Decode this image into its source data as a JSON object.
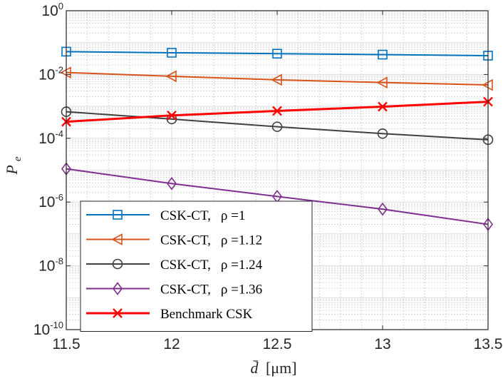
{
  "chart_data": {
    "type": "line",
    "xlabel_symbol": "d̄",
    "xlabel_unit": "[μm]",
    "ylabel_main": "P",
    "ylabel_sub": "e",
    "x": [
      11.5,
      12,
      12.5,
      13,
      13.5
    ],
    "xlim": [
      11.5,
      13.5
    ],
    "ylim": [
      1e-10,
      1
    ],
    "yscale": "log",
    "grid": true,
    "legend_position": "lower-left",
    "x_ticks": [
      "11.5",
      "12",
      "12.5",
      "13",
      "13.5"
    ],
    "y_ticks": [
      {
        "base": "10",
        "exp": "0"
      },
      {
        "base": "10",
        "exp": "-2"
      },
      {
        "base": "10",
        "exp": "-4"
      },
      {
        "base": "10",
        "exp": "-6"
      },
      {
        "base": "10",
        "exp": "-8"
      },
      {
        "base": "10",
        "exp": "-10"
      }
    ],
    "series": [
      {
        "name": "CSK-CT,",
        "rho": "ρ =1",
        "color": "#0072BD",
        "marker": "square",
        "values": [
          0.052,
          0.048,
          0.045,
          0.042,
          0.039
        ]
      },
      {
        "name": "CSK-CT,",
        "rho": "ρ =1.12",
        "color": "#D95319",
        "marker": "triangle-left",
        "values": [
          0.0115,
          0.0088,
          0.0068,
          0.0056,
          0.0047
        ]
      },
      {
        "name": "CSK-CT,",
        "rho": "ρ =1.24",
        "color": "#404040",
        "marker": "circle",
        "values": [
          0.00068,
          0.0004,
          0.00023,
          0.00014,
          9e-05
        ]
      },
      {
        "name": "CSK-CT,",
        "rho": "ρ =1.36",
        "color": "#7E2F8E",
        "marker": "diamond",
        "values": [
          1.1e-05,
          3.8e-06,
          1.5e-06,
          6e-07,
          2e-07
        ]
      },
      {
        "name": "Benchmark CSK",
        "rho": "",
        "color": "#FF0000",
        "marker": "x",
        "values": [
          0.00033,
          0.00052,
          0.00072,
          0.00098,
          0.0014
        ]
      }
    ]
  }
}
